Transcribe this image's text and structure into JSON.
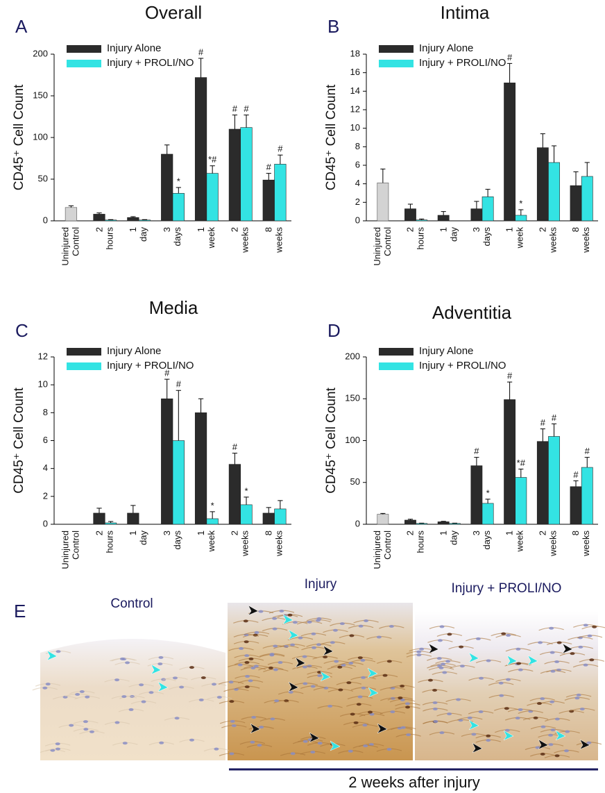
{
  "chart_data": [
    {
      "type": "bar",
      "panel_label": "A",
      "title": "Overall",
      "ylabel": "CD45⁺ Cell Count",
      "categories": [
        "Uninjured Control",
        "2 hours",
        "1 day",
        "3 days",
        "1 week",
        "2 weeks",
        "8 weeks"
      ],
      "control": {
        "value": 16,
        "error": 2,
        "color": "#d3d3d3"
      },
      "series": [
        {
          "name": "Injury Alone",
          "color": "#2b2b2b",
          "values": [
            null,
            8,
            4,
            80,
            172,
            110,
            49
          ],
          "errors": [
            null,
            1.5,
            1,
            11,
            23,
            17,
            8
          ],
          "annotations": [
            null,
            null,
            null,
            null,
            "#",
            "#",
            "#"
          ]
        },
        {
          "name": "Injury + PROLI/NO",
          "color": "#33e3e3",
          "values": [
            null,
            1,
            1,
            33,
            57,
            112,
            68
          ],
          "errors": [
            null,
            0.5,
            0.5,
            7,
            9,
            15,
            11
          ],
          "annotations": [
            null,
            null,
            null,
            "*",
            "*#",
            "#",
            "#"
          ]
        }
      ],
      "ylim": [
        0,
        200
      ],
      "yticks": [
        0,
        50,
        100,
        150,
        200
      ],
      "legend": "upper left"
    },
    {
      "type": "bar",
      "panel_label": "B",
      "title": "Intima",
      "ylabel": "CD45⁺ Cell Count",
      "categories": [
        "Uninjured Control",
        "2 hours",
        "1 day",
        "3 days",
        "1 week",
        "2 weeks",
        "8 weeks"
      ],
      "control": {
        "value": 4.1,
        "error": 1.5,
        "color": "#d3d3d3"
      },
      "series": [
        {
          "name": "Injury Alone",
          "color": "#2b2b2b",
          "values": [
            null,
            1.3,
            0.6,
            1.3,
            14.9,
            7.9,
            3.8
          ],
          "errors": [
            null,
            0.5,
            0.4,
            0.8,
            2.1,
            1.5,
            1.5
          ],
          "annotations": [
            null,
            null,
            null,
            null,
            "#",
            null,
            null
          ]
        },
        {
          "name": "Injury + PROLI/NO",
          "color": "#33e3e3",
          "values": [
            null,
            0.1,
            0,
            2.6,
            0.6,
            6.3,
            4.8
          ],
          "errors": [
            null,
            0.1,
            0,
            0.8,
            0.6,
            1.8,
            1.5
          ],
          "annotations": [
            null,
            null,
            null,
            null,
            "*",
            null,
            null
          ]
        }
      ],
      "ylim": [
        0,
        18
      ],
      "yticks": [
        0,
        2,
        4,
        6,
        8,
        10,
        12,
        14,
        16,
        18
      ],
      "legend": "upper left"
    },
    {
      "type": "bar",
      "panel_label": "C",
      "title": "Media",
      "ylabel": "CD45⁺ Cell Count",
      "categories": [
        "Uninjured Control",
        "2 hours",
        "1 day",
        "3 days",
        "1 week",
        "2 weeks",
        "8 weeks"
      ],
      "control": {
        "value": 0,
        "error": 0,
        "color": "#d3d3d3"
      },
      "series": [
        {
          "name": "Injury Alone",
          "color": "#2b2b2b",
          "values": [
            null,
            0.8,
            0.8,
            9.0,
            8.0,
            4.3,
            0.8
          ],
          "errors": [
            null,
            0.35,
            0.55,
            1.4,
            1.0,
            0.8,
            0.4
          ],
          "annotations": [
            null,
            null,
            null,
            "#",
            null,
            "#",
            null
          ]
        },
        {
          "name": "Injury + PROLI/NO",
          "color": "#33e3e3",
          "values": [
            null,
            0.1,
            0,
            6.0,
            0.4,
            1.4,
            1.1
          ],
          "errors": [
            null,
            0.1,
            0,
            3.6,
            0.5,
            0.55,
            0.6
          ],
          "annotations": [
            null,
            null,
            null,
            "#",
            "*",
            "*",
            null
          ]
        }
      ],
      "ylim": [
        0,
        12
      ],
      "yticks": [
        0,
        2,
        4,
        6,
        8,
        10,
        12
      ],
      "legend": "upper left"
    },
    {
      "type": "bar",
      "panel_label": "D",
      "title": "Adventitia",
      "ylabel": "CD45⁺ Cell Count",
      "categories": [
        "Uninjured Control",
        "2 hours",
        "1 day",
        "3 days",
        "1 week",
        "2 weeks",
        "8 weeks"
      ],
      "control": {
        "value": 12,
        "error": 1,
        "color": "#d3d3d3"
      },
      "series": [
        {
          "name": "Injury Alone",
          "color": "#2b2b2b",
          "values": [
            null,
            5,
            3,
            70,
            149,
            99,
            45
          ],
          "errors": [
            null,
            1,
            0.5,
            10,
            21,
            15,
            7
          ],
          "annotations": [
            null,
            null,
            null,
            "#",
            "#",
            "#",
            "#"
          ]
        },
        {
          "name": "Injury + PROLI/NO",
          "color": "#33e3e3",
          "values": [
            null,
            1,
            1,
            25,
            56,
            105,
            68
          ],
          "errors": [
            null,
            0.3,
            0.3,
            5,
            10,
            15,
            12
          ],
          "annotations": [
            null,
            null,
            null,
            "*",
            "*#",
            "#",
            "#"
          ]
        }
      ],
      "ylim": [
        0,
        200
      ],
      "yticks": [
        0,
        50,
        100,
        150,
        200
      ],
      "legend": "upper left"
    }
  ],
  "panel_e": {
    "panel_label": "E",
    "images": [
      "Control",
      "Injury",
      "Injury + PROLI/NO"
    ],
    "caption": "2 weeks after injury"
  }
}
